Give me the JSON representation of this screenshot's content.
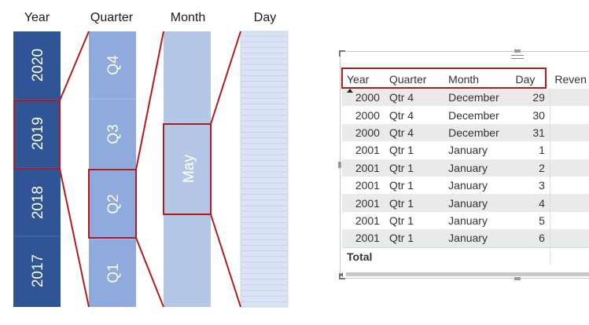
{
  "hierarchy": {
    "labels": [
      "Year",
      "Quarter",
      "Month",
      "Day"
    ],
    "years": [
      "2020",
      "2019",
      "2018",
      "2017"
    ],
    "quarters": [
      "Q4",
      "Q3",
      "Q2",
      "Q1"
    ],
    "month": "May",
    "selected": {
      "year": "2019",
      "quarter": "Q2",
      "month": "May"
    }
  },
  "table": {
    "columns": [
      "Year",
      "Quarter",
      "Month",
      "Day",
      "Reven"
    ],
    "rows": [
      [
        "2000",
        "Qtr 4",
        "December",
        "29"
      ],
      [
        "2000",
        "Qtr 4",
        "December",
        "30"
      ],
      [
        "2000",
        "Qtr 4",
        "December",
        "31"
      ],
      [
        "2001",
        "Qtr 1",
        "January",
        "1"
      ],
      [
        "2001",
        "Qtr 1",
        "January",
        "2"
      ],
      [
        "2001",
        "Qtr 1",
        "January",
        "3"
      ],
      [
        "2001",
        "Qtr 1",
        "January",
        "4"
      ],
      [
        "2001",
        "Qtr 1",
        "January",
        "5"
      ],
      [
        "2001",
        "Qtr 1",
        "January",
        "6"
      ]
    ],
    "total_label": "Total"
  },
  "colors": {
    "year_bar": "#2f5597",
    "quarter_bar": "#8faadc",
    "month_bar": "#b4c7e7",
    "day_bar": "#dae3f3",
    "highlight": "#b01c1c",
    "row_alt": "#eaeaea"
  },
  "icons": [
    "drag-grip-icon",
    "sort-ascending-icon",
    "scroll-left-icon"
  ]
}
